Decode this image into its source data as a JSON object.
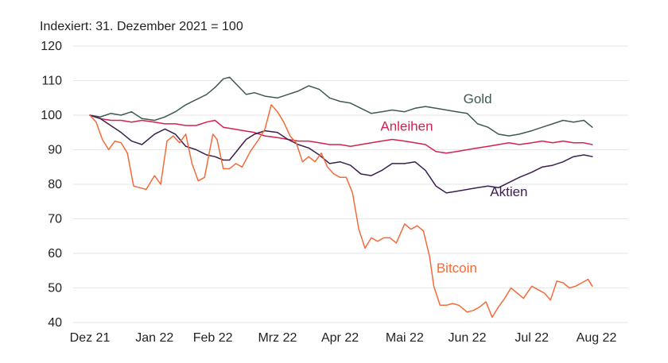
{
  "chart_data": {
    "type": "line",
    "title": "Indexiert: 31. Dezember 2021 = 100",
    "ylim": [
      40,
      120
    ],
    "yticks": [
      40,
      50,
      60,
      70,
      80,
      90,
      100,
      110,
      120
    ],
    "x_tick_labels": [
      "Dez 21",
      "Jan 22",
      "Feb 22",
      "Mrz 22",
      "Apr 22",
      "Mai 22",
      "Jun 22",
      "Jul 22",
      "Aug 22"
    ],
    "x_tick_dates": [
      "2021-12-31",
      "2022-01-31",
      "2022-02-28",
      "2022-03-31",
      "2022-04-30",
      "2022-05-31",
      "2022-06-30",
      "2022-07-31",
      "2022-08-31"
    ],
    "grid": true,
    "series": [
      {
        "name": "Gold",
        "color": "#3d5a52",
        "points": [
          [
            "2021-12-31",
            100
          ],
          [
            "2022-01-05",
            99.5
          ],
          [
            "2022-01-10",
            100.5
          ],
          [
            "2022-01-15",
            100.0
          ],
          [
            "2022-01-20",
            101.0
          ],
          [
            "2022-01-25",
            99.0
          ],
          [
            "2022-01-31",
            98.5
          ],
          [
            "2022-02-05",
            99.5
          ],
          [
            "2022-02-10",
            101.0
          ],
          [
            "2022-02-15",
            103.0
          ],
          [
            "2022-02-20",
            104.5
          ],
          [
            "2022-02-25",
            106.0
          ],
          [
            "2022-03-01",
            108.0
          ],
          [
            "2022-03-05",
            110.5
          ],
          [
            "2022-03-08",
            111.0
          ],
          [
            "2022-03-12",
            108.5
          ],
          [
            "2022-03-16",
            106.0
          ],
          [
            "2022-03-20",
            106.5
          ],
          [
            "2022-03-25",
            105.5
          ],
          [
            "2022-03-31",
            105.0
          ],
          [
            "2022-04-05",
            106.0
          ],
          [
            "2022-04-10",
            107.0
          ],
          [
            "2022-04-15",
            108.5
          ],
          [
            "2022-04-20",
            107.5
          ],
          [
            "2022-04-25",
            105.0
          ],
          [
            "2022-04-30",
            104.0
          ],
          [
            "2022-05-05",
            103.5
          ],
          [
            "2022-05-10",
            102.0
          ],
          [
            "2022-05-15",
            100.5
          ],
          [
            "2022-05-20",
            101.0
          ],
          [
            "2022-05-25",
            101.5
          ],
          [
            "2022-05-31",
            101.0
          ],
          [
            "2022-06-05",
            102.0
          ],
          [
            "2022-06-10",
            102.5
          ],
          [
            "2022-06-15",
            102.0
          ],
          [
            "2022-06-20",
            101.5
          ],
          [
            "2022-06-25",
            101.0
          ],
          [
            "2022-06-30",
            100.5
          ],
          [
            "2022-07-05",
            97.5
          ],
          [
            "2022-07-10",
            96.5
          ],
          [
            "2022-07-15",
            94.5
          ],
          [
            "2022-07-20",
            94.0
          ],
          [
            "2022-07-25",
            94.5
          ],
          [
            "2022-07-31",
            95.5
          ],
          [
            "2022-08-05",
            96.5
          ],
          [
            "2022-08-10",
            97.5
          ],
          [
            "2022-08-15",
            98.5
          ],
          [
            "2022-08-20",
            98.0
          ],
          [
            "2022-08-25",
            98.5
          ],
          [
            "2022-08-29",
            96.5
          ]
        ]
      },
      {
        "name": "Anleihen",
        "color": "#d6204f",
        "points": [
          [
            "2021-12-31",
            100
          ],
          [
            "2022-01-05",
            99.0
          ],
          [
            "2022-01-10",
            98.5
          ],
          [
            "2022-01-15",
            98.5
          ],
          [
            "2022-01-20",
            98.0
          ],
          [
            "2022-01-25",
            98.5
          ],
          [
            "2022-01-31",
            98.0
          ],
          [
            "2022-02-05",
            97.5
          ],
          [
            "2022-02-10",
            97.5
          ],
          [
            "2022-02-15",
            97.0
          ],
          [
            "2022-02-20",
            97.0
          ],
          [
            "2022-02-25",
            98.0
          ],
          [
            "2022-03-01",
            98.5
          ],
          [
            "2022-03-05",
            96.5
          ],
          [
            "2022-03-10",
            96.0
          ],
          [
            "2022-03-15",
            95.5
          ],
          [
            "2022-03-20",
            95.0
          ],
          [
            "2022-03-25",
            94.0
          ],
          [
            "2022-03-31",
            93.5
          ],
          [
            "2022-04-05",
            93.0
          ],
          [
            "2022-04-10",
            92.5
          ],
          [
            "2022-04-15",
            92.5
          ],
          [
            "2022-04-20",
            92.0
          ],
          [
            "2022-04-25",
            91.5
          ],
          [
            "2022-04-30",
            91.5
          ],
          [
            "2022-05-05",
            91.0
          ],
          [
            "2022-05-10",
            91.5
          ],
          [
            "2022-05-15",
            92.0
          ],
          [
            "2022-05-20",
            92.5
          ],
          [
            "2022-05-25",
            93.0
          ],
          [
            "2022-05-31",
            92.5
          ],
          [
            "2022-06-05",
            92.0
          ],
          [
            "2022-06-10",
            91.5
          ],
          [
            "2022-06-15",
            89.5
          ],
          [
            "2022-06-20",
            89.0
          ],
          [
            "2022-06-25",
            89.5
          ],
          [
            "2022-06-30",
            90.0
          ],
          [
            "2022-07-05",
            90.5
          ],
          [
            "2022-07-10",
            91.0
          ],
          [
            "2022-07-15",
            91.5
          ],
          [
            "2022-07-20",
            92.0
          ],
          [
            "2022-07-25",
            91.5
          ],
          [
            "2022-07-31",
            92.0
          ],
          [
            "2022-08-05",
            92.5
          ],
          [
            "2022-08-10",
            92.0
          ],
          [
            "2022-08-15",
            92.5
          ],
          [
            "2022-08-20",
            92.0
          ],
          [
            "2022-08-25",
            92.0
          ],
          [
            "2022-08-29",
            91.5
          ]
        ]
      },
      {
        "name": "Aktien",
        "color": "#3b1f4e",
        "points": [
          [
            "2021-12-31",
            100
          ],
          [
            "2022-01-05",
            99.0
          ],
          [
            "2022-01-10",
            97.0
          ],
          [
            "2022-01-15",
            95.0
          ],
          [
            "2022-01-20",
            92.5
          ],
          [
            "2022-01-25",
            91.5
          ],
          [
            "2022-01-31",
            94.5
          ],
          [
            "2022-02-05",
            96.0
          ],
          [
            "2022-02-10",
            94.5
          ],
          [
            "2022-02-15",
            91.0
          ],
          [
            "2022-02-20",
            90.0
          ],
          [
            "2022-02-25",
            88.5
          ],
          [
            "2022-03-01",
            88.0
          ],
          [
            "2022-03-05",
            87.0
          ],
          [
            "2022-03-08",
            87.0
          ],
          [
            "2022-03-12",
            90.0
          ],
          [
            "2022-03-16",
            93.0
          ],
          [
            "2022-03-20",
            94.5
          ],
          [
            "2022-03-25",
            95.5
          ],
          [
            "2022-03-31",
            95.0
          ],
          [
            "2022-04-05",
            93.0
          ],
          [
            "2022-04-10",
            91.5
          ],
          [
            "2022-04-15",
            90.5
          ],
          [
            "2022-04-20",
            88.5
          ],
          [
            "2022-04-25",
            86.0
          ],
          [
            "2022-04-30",
            86.5
          ],
          [
            "2022-05-05",
            85.5
          ],
          [
            "2022-05-10",
            83.0
          ],
          [
            "2022-05-15",
            82.5
          ],
          [
            "2022-05-20",
            84.0
          ],
          [
            "2022-05-25",
            86.0
          ],
          [
            "2022-05-31",
            86.0
          ],
          [
            "2022-06-05",
            86.5
          ],
          [
            "2022-06-10",
            84.0
          ],
          [
            "2022-06-15",
            79.5
          ],
          [
            "2022-06-20",
            77.5
          ],
          [
            "2022-06-25",
            78.0
          ],
          [
            "2022-06-30",
            78.5
          ],
          [
            "2022-07-05",
            79.0
          ],
          [
            "2022-07-10",
            79.5
          ],
          [
            "2022-07-15",
            79.0
          ],
          [
            "2022-07-20",
            80.5
          ],
          [
            "2022-07-25",
            82.0
          ],
          [
            "2022-07-31",
            83.5
          ],
          [
            "2022-08-05",
            85.0
          ],
          [
            "2022-08-10",
            85.5
          ],
          [
            "2022-08-15",
            86.5
          ],
          [
            "2022-08-20",
            88.0
          ],
          [
            "2022-08-25",
            88.5
          ],
          [
            "2022-08-29",
            88.0
          ]
        ]
      },
      {
        "name": "Bitcoin",
        "color": "#f26b3a",
        "points": [
          [
            "2021-12-31",
            100
          ],
          [
            "2022-01-03",
            98.0
          ],
          [
            "2022-01-06",
            93.0
          ],
          [
            "2022-01-09",
            90.0
          ],
          [
            "2022-01-12",
            92.5
          ],
          [
            "2022-01-15",
            92.0
          ],
          [
            "2022-01-18",
            89.0
          ],
          [
            "2022-01-21",
            79.5
          ],
          [
            "2022-01-24",
            79.0
          ],
          [
            "2022-01-27",
            78.5
          ],
          [
            "2022-01-31",
            82.5
          ],
          [
            "2022-02-03",
            80.0
          ],
          [
            "2022-02-06",
            92.5
          ],
          [
            "2022-02-09",
            94.0
          ],
          [
            "2022-02-12",
            92.0
          ],
          [
            "2022-02-15",
            94.5
          ],
          [
            "2022-02-18",
            86.0
          ],
          [
            "2022-02-21",
            81.0
          ],
          [
            "2022-02-24",
            82.0
          ],
          [
            "2022-02-28",
            94.5
          ],
          [
            "2022-03-02",
            93.0
          ],
          [
            "2022-03-05",
            84.5
          ],
          [
            "2022-03-08",
            84.5
          ],
          [
            "2022-03-11",
            86.0
          ],
          [
            "2022-03-14",
            85.0
          ],
          [
            "2022-03-18",
            89.5
          ],
          [
            "2022-03-22",
            93.0
          ],
          [
            "2022-03-25",
            96.0
          ],
          [
            "2022-03-28",
            103.0
          ],
          [
            "2022-03-31",
            101.0
          ],
          [
            "2022-04-03",
            98.0
          ],
          [
            "2022-04-06",
            94.0
          ],
          [
            "2022-04-09",
            92.0
          ],
          [
            "2022-04-12",
            86.5
          ],
          [
            "2022-04-15",
            88.0
          ],
          [
            "2022-04-18",
            86.5
          ],
          [
            "2022-04-21",
            89.0
          ],
          [
            "2022-04-24",
            85.0
          ],
          [
            "2022-04-27",
            83.0
          ],
          [
            "2022-04-30",
            82.0
          ],
          [
            "2022-05-03",
            82.0
          ],
          [
            "2022-05-06",
            77.5
          ],
          [
            "2022-05-09",
            67.0
          ],
          [
            "2022-05-12",
            61.5
          ],
          [
            "2022-05-15",
            64.5
          ],
          [
            "2022-05-18",
            63.5
          ],
          [
            "2022-05-21",
            64.5
          ],
          [
            "2022-05-24",
            64.5
          ],
          [
            "2022-05-27",
            63.0
          ],
          [
            "2022-05-31",
            68.5
          ],
          [
            "2022-06-03",
            67.0
          ],
          [
            "2022-06-06",
            68.0
          ],
          [
            "2022-06-09",
            66.5
          ],
          [
            "2022-06-12",
            59.0
          ],
          [
            "2022-06-14",
            50.5
          ],
          [
            "2022-06-17",
            45.0
          ],
          [
            "2022-06-20",
            45.0
          ],
          [
            "2022-06-23",
            45.5
          ],
          [
            "2022-06-26",
            45.0
          ],
          [
            "2022-06-30",
            43.0
          ],
          [
            "2022-07-03",
            43.5
          ],
          [
            "2022-07-06",
            44.5
          ],
          [
            "2022-07-09",
            46.0
          ],
          [
            "2022-07-12",
            41.5
          ],
          [
            "2022-07-15",
            44.5
          ],
          [
            "2022-07-18",
            47.0
          ],
          [
            "2022-07-21",
            50.0
          ],
          [
            "2022-07-24",
            48.5
          ],
          [
            "2022-07-27",
            47.0
          ],
          [
            "2022-07-31",
            50.5
          ],
          [
            "2022-08-03",
            49.5
          ],
          [
            "2022-08-06",
            48.5
          ],
          [
            "2022-08-09",
            46.5
          ],
          [
            "2022-08-12",
            52.0
          ],
          [
            "2022-08-15",
            51.5
          ],
          [
            "2022-08-18",
            50.0
          ],
          [
            "2022-08-21",
            50.5
          ],
          [
            "2022-08-24",
            51.5
          ],
          [
            "2022-08-27",
            52.5
          ],
          [
            "2022-08-29",
            50.5
          ]
        ]
      }
    ]
  }
}
